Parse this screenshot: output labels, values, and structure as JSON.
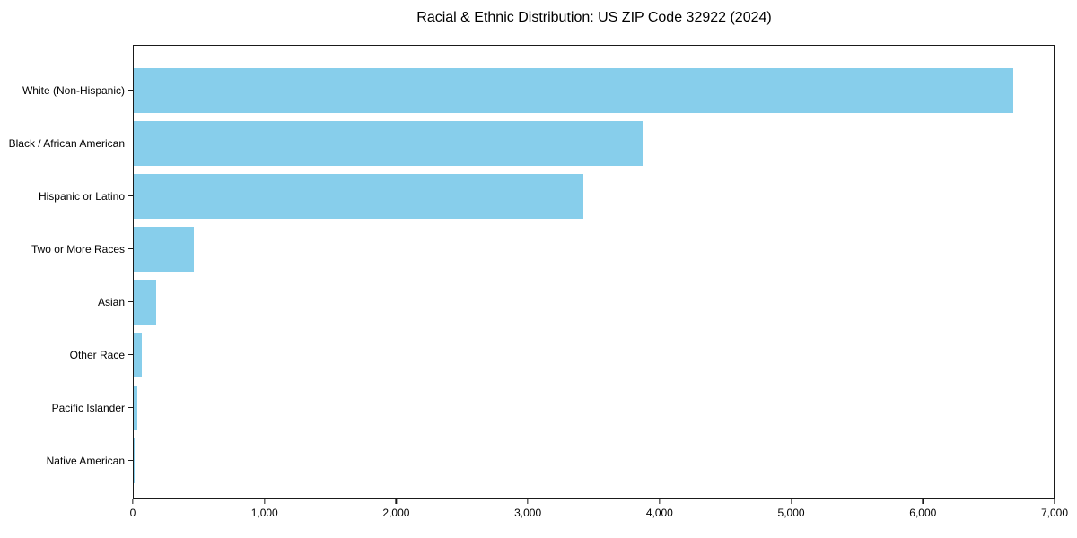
{
  "chart_data": {
    "type": "bar",
    "orientation": "horizontal",
    "title": "Racial & Ethnic Distribution: US ZIP Code 32922 (2024)",
    "categories": [
      "White (Non-Hispanic)",
      "Black / African American",
      "Hispanic or Latino",
      "Two or More Races",
      "Asian",
      "Other Race",
      "Pacific Islander",
      "Native American"
    ],
    "values": [
      6690,
      3870,
      3420,
      460,
      170,
      60,
      30,
      5
    ],
    "xlabel": "",
    "ylabel": "",
    "xlim": [
      0,
      7000
    ],
    "xticks": [
      0,
      1000,
      2000,
      3000,
      4000,
      5000,
      6000,
      7000
    ],
    "xtick_labels": [
      "0",
      "1,000",
      "2,000",
      "3,000",
      "4,000",
      "5,000",
      "6,000",
      "7,000"
    ],
    "bar_color": "#87CEEB",
    "frame_color": "#1a1a1a",
    "grid": false,
    "legend": "none"
  }
}
